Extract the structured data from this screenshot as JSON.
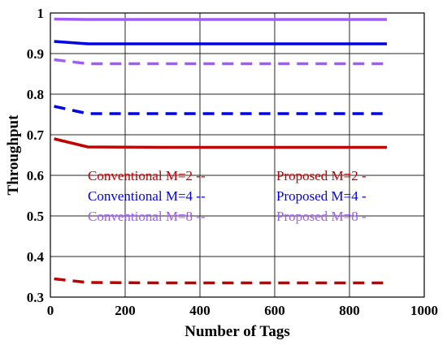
{
  "chart_data": {
    "type": "line",
    "xlabel": "Number of Tags",
    "ylabel": "Throughput",
    "xlim": [
      0,
      1000
    ],
    "ylim": [
      0.3,
      1.0
    ],
    "xticks": [
      0,
      200,
      400,
      600,
      800,
      1000
    ],
    "yticks": [
      0.3,
      0.4,
      0.5,
      0.6,
      0.7,
      0.8,
      0.9,
      1.0
    ],
    "xtick_labels": [
      "0",
      "200",
      "400",
      "600",
      "800",
      "1000"
    ],
    "ytick_labels": [
      "0.3",
      "0.4",
      "0.5",
      "0.6",
      "0.7",
      "0.8",
      "0.9",
      "1"
    ],
    "grid": true,
    "x": [
      10,
      100,
      300,
      500,
      700,
      900
    ],
    "series": [
      {
        "name": "Conventional M=2 --",
        "values": [
          0.345,
          0.336,
          0.335,
          0.335,
          0.335,
          0.335
        ],
        "color": "#c00000",
        "dashed": true
      },
      {
        "name": "Conventional M=4 --",
        "values": [
          0.77,
          0.752,
          0.752,
          0.752,
          0.752,
          0.752
        ],
        "color": "#0000e6",
        "dashed": true
      },
      {
        "name": "Conventional M=8 --",
        "values": [
          0.885,
          0.875,
          0.875,
          0.875,
          0.875,
          0.875
        ],
        "color": "#a05aff",
        "dashed": true
      },
      {
        "name": "Proposed M=2 -",
        "values": [
          0.69,
          0.67,
          0.669,
          0.669,
          0.669,
          0.669
        ],
        "color": "#c00000",
        "dashed": false
      },
      {
        "name": "Proposed M=4 -",
        "values": [
          0.93,
          0.924,
          0.924,
          0.924,
          0.924,
          0.924
        ],
        "color": "#0000e6",
        "dashed": false
      },
      {
        "name": "Proposed M=8 -",
        "values": [
          0.985,
          0.984,
          0.984,
          0.984,
          0.984,
          0.984
        ],
        "color": "#a05aff",
        "dashed": false
      }
    ]
  }
}
